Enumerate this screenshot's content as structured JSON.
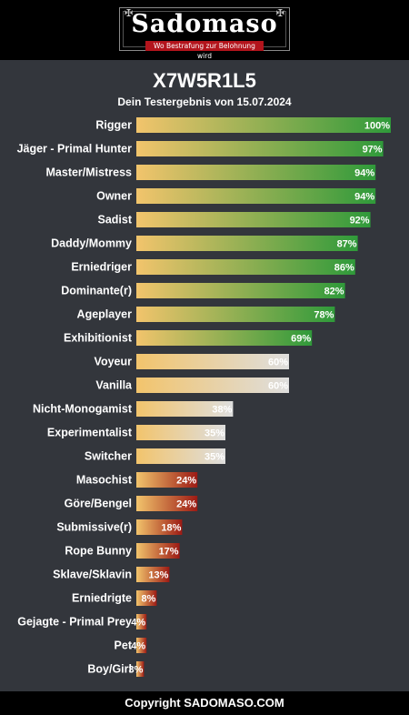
{
  "header": {
    "logo_text": "Sadomaso",
    "logo_tagline": "Wo Bestrafung zur Belohnung wird"
  },
  "title": "X7W5R1L5",
  "subtitle": "Dein Testergebnis von 15.07.2024",
  "footer": "Copyright SADOMASO.COM",
  "colors": {
    "bar_start": "#f2c46c",
    "high_end": "#2f9a3a",
    "mid_end": "#dedede",
    "low_end": "#9c1a14"
  },
  "chart_data": {
    "type": "bar",
    "orientation": "horizontal",
    "value_suffix": "%",
    "xlim": [
      0,
      100
    ],
    "categories": [
      "Rigger",
      "Jäger - Primal Hunter",
      "Master/Mistress",
      "Owner",
      "Sadist",
      "Daddy/Mommy",
      "Erniedriger",
      "Dominante(r)",
      "Ageplayer",
      "Exhibitionist",
      "Voyeur",
      "Vanilla",
      "Nicht-Monogamist",
      "Experimentalist",
      "Switcher",
      "Masochist",
      "Göre/Bengel",
      "Submissive(r)",
      "Rope Bunny",
      "Sklave/Sklavin",
      "Erniedrigte",
      "Gejagte - Primal Prey",
      "Pet",
      "Boy/Girl"
    ],
    "values": [
      100,
      97,
      94,
      94,
      92,
      87,
      86,
      82,
      78,
      69,
      60,
      60,
      38,
      35,
      35,
      24,
      24,
      18,
      17,
      13,
      8,
      4,
      4,
      3
    ],
    "labels": [
      "100%",
      "97%",
      "94%",
      "94%",
      "92%",
      "87%",
      "86%",
      "82%",
      "78%",
      "69%",
      "60%",
      "60%",
      "38%",
      "35%",
      "35%",
      "24%",
      "24%",
      "18%",
      "17%",
      "13%",
      "8%",
      "4%",
      "4%",
      "3%"
    ]
  }
}
